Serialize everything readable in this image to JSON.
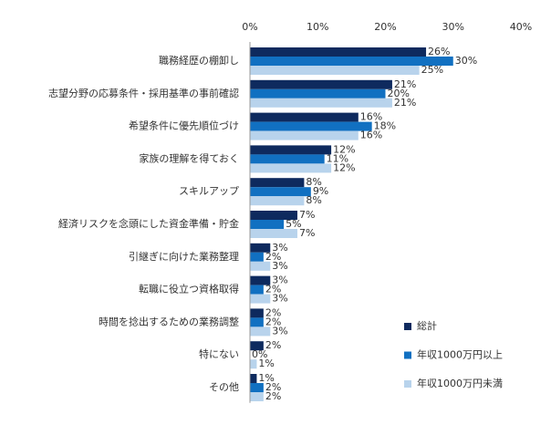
{
  "chart_data": {
    "type": "bar",
    "orientation": "horizontal",
    "categories": [
      "職務経歴の棚卸し",
      "志望分野の応募条件・採用基準の事前確認",
      "希望条件に優先順位づけ",
      "家族の理解を得ておく",
      "スキルアップ",
      "経済リスクを念頭にした資金準備・貯金",
      "引継ぎに向けた業務整理",
      "転職に役立つ資格取得",
      "時間を捻出するための業務調整",
      "特にない",
      "その他"
    ],
    "series": [
      {
        "name": "総計",
        "color": "#0e2a5e",
        "values": [
          26,
          21,
          16,
          12,
          8,
          7,
          3,
          3,
          2,
          2,
          1
        ],
        "value_labels": [
          "26%",
          "21%",
          "16%",
          "12%",
          "8%",
          "7%",
          "3%",
          "3%",
          "2%",
          "2%",
          "1%"
        ]
      },
      {
        "name": "年収1000万円以上",
        "color": "#1170c1",
        "values": [
          30,
          20,
          18,
          11,
          9,
          5,
          2,
          2,
          2,
          0,
          2
        ],
        "value_labels": [
          "30%",
          "20%",
          "18%",
          "11%",
          "9%",
          "5%",
          "2%",
          "2%",
          "2%",
          "0%",
          "2%"
        ]
      },
      {
        "name": "年収1000万円未満",
        "color": "#b8d3ec",
        "values": [
          25,
          21,
          16,
          12,
          8,
          7,
          3,
          3,
          3,
          1,
          2
        ],
        "value_labels": [
          "25%",
          "21%",
          "16%",
          "12%",
          "8%",
          "7%",
          "3%",
          "3%",
          "3%",
          "1%",
          "2%"
        ]
      }
    ],
    "xlim": [
      0,
      40
    ],
    "xticks": [
      {
        "value": 0,
        "label": "0%"
      },
      {
        "value": 10,
        "label": "10%"
      },
      {
        "value": 20,
        "label": "20%"
      },
      {
        "value": 30,
        "label": "30%"
      },
      {
        "value": 40,
        "label": "40%"
      }
    ],
    "legend": "lower right"
  }
}
